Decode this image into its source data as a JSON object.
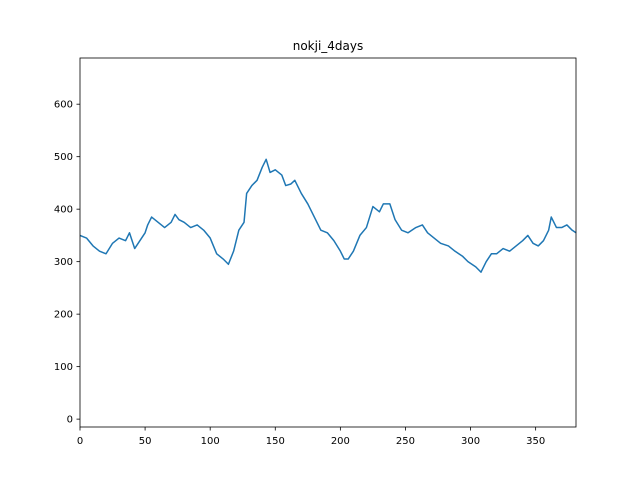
{
  "chart_data": {
    "type": "line",
    "title": "nokji_4days",
    "x": [
      0,
      5,
      10,
      15,
      20,
      25,
      30,
      35,
      38,
      42,
      46,
      50,
      52,
      55,
      60,
      65,
      70,
      73,
      76,
      80,
      85,
      90,
      95,
      100,
      105,
      110,
      114,
      118,
      122,
      126,
      128,
      132,
      136,
      140,
      143,
      146,
      150,
      155,
      158,
      162,
      165,
      170,
      175,
      180,
      185,
      190,
      195,
      200,
      203,
      206,
      210,
      215,
      220,
      225,
      230,
      233,
      238,
      242,
      247,
      252,
      258,
      263,
      267,
      272,
      277,
      283,
      288,
      294,
      298,
      304,
      308,
      312,
      316,
      320,
      325,
      330,
      335,
      340,
      344,
      348,
      352,
      356,
      360,
      362,
      366,
      370,
      374,
      378,
      381
    ],
    "series": [
      {
        "color": "#1f77b4",
        "values": [
          350,
          345,
          330,
          320,
          315,
          335,
          345,
          340,
          355,
          325,
          340,
          355,
          370,
          385,
          375,
          365,
          375,
          390,
          380,
          375,
          365,
          370,
          360,
          345,
          315,
          305,
          295,
          320,
          360,
          375,
          430,
          445,
          455,
          480,
          495,
          470,
          475,
          465,
          445,
          448,
          455,
          430,
          410,
          385,
          360,
          355,
          340,
          320,
          305,
          305,
          320,
          350,
          365,
          405,
          395,
          410,
          410,
          380,
          360,
          355,
          365,
          370,
          355,
          345,
          335,
          330,
          320,
          310,
          300,
          290,
          280,
          300,
          315,
          315,
          325,
          320,
          330,
          340,
          350,
          335,
          330,
          340,
          360,
          385,
          365,
          365,
          370,
          360,
          355
        ]
      }
    ],
    "xlim": [
      0,
      381
    ],
    "ylim": [
      -15,
      688
    ],
    "xticks": [
      0,
      50,
      100,
      150,
      200,
      250,
      300,
      350
    ],
    "yticks": [
      0,
      100,
      200,
      300,
      400,
      500,
      600
    ]
  }
}
